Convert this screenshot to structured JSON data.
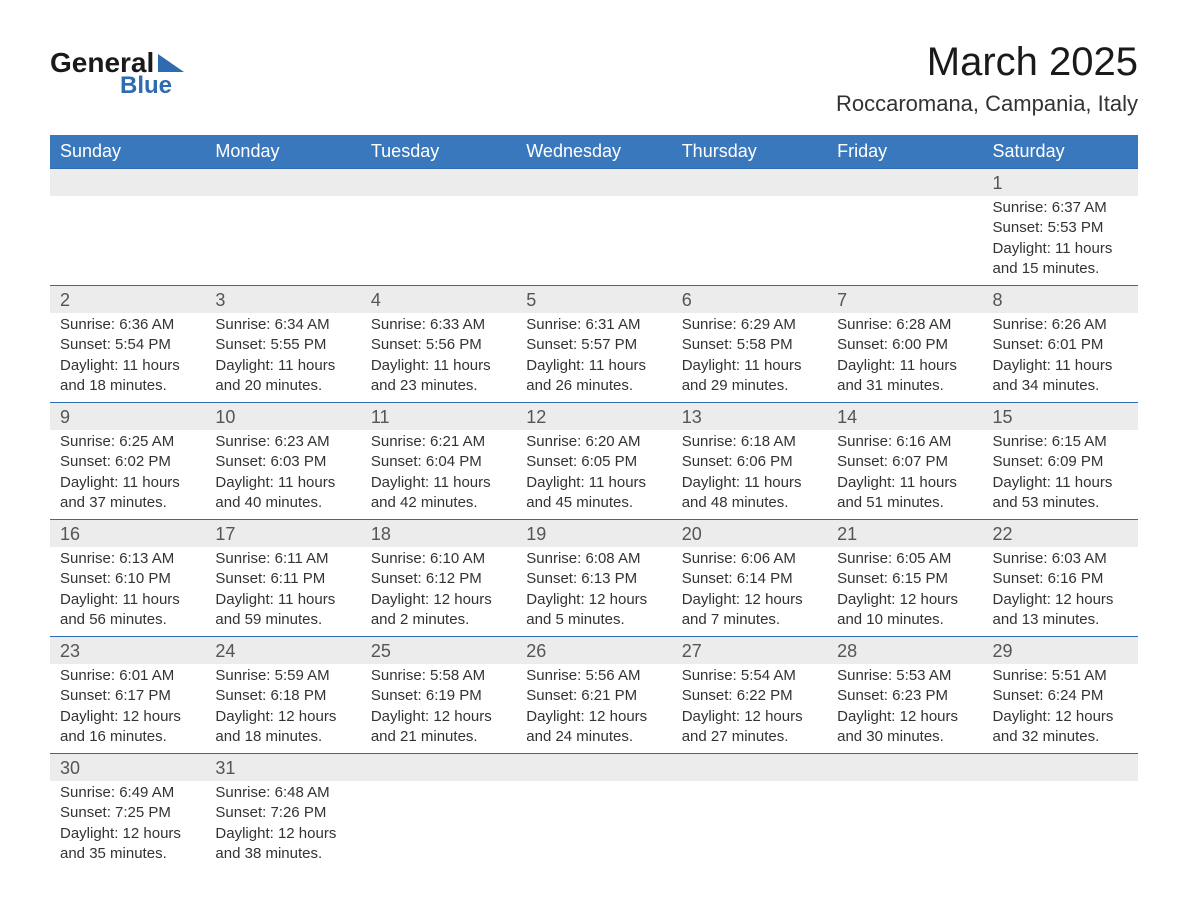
{
  "branding": {
    "logo_text1": "General",
    "logo_text2": "Blue",
    "logo_color_primary": "#1a1a1a",
    "logo_color_accent": "#2e6bb0"
  },
  "header": {
    "month_title": "March 2025",
    "location": "Roccaromana, Campania, Italy"
  },
  "style": {
    "header_row_bg": "#3a78bd",
    "header_row_text": "#ffffff",
    "daynum_bg": "#ececec",
    "row_separator": "#2e6bb0",
    "body_text": "#333333",
    "daynum_text": "#555555",
    "page_bg": "#ffffff",
    "th_fontsize": 18,
    "daynum_fontsize": 18,
    "data_fontsize": 15,
    "title_fontsize": 40,
    "location_fontsize": 22
  },
  "weekdays": [
    "Sunday",
    "Monday",
    "Tuesday",
    "Wednesday",
    "Thursday",
    "Friday",
    "Saturday"
  ],
  "weeks": [
    [
      null,
      null,
      null,
      null,
      null,
      null,
      {
        "n": "1",
        "sunrise": "Sunrise: 6:37 AM",
        "sunset": "Sunset: 5:53 PM",
        "daylight": "Daylight: 11 hours and 15 minutes."
      }
    ],
    [
      {
        "n": "2",
        "sunrise": "Sunrise: 6:36 AM",
        "sunset": "Sunset: 5:54 PM",
        "daylight": "Daylight: 11 hours and 18 minutes."
      },
      {
        "n": "3",
        "sunrise": "Sunrise: 6:34 AM",
        "sunset": "Sunset: 5:55 PM",
        "daylight": "Daylight: 11 hours and 20 minutes."
      },
      {
        "n": "4",
        "sunrise": "Sunrise: 6:33 AM",
        "sunset": "Sunset: 5:56 PM",
        "daylight": "Daylight: 11 hours and 23 minutes."
      },
      {
        "n": "5",
        "sunrise": "Sunrise: 6:31 AM",
        "sunset": "Sunset: 5:57 PM",
        "daylight": "Daylight: 11 hours and 26 minutes."
      },
      {
        "n": "6",
        "sunrise": "Sunrise: 6:29 AM",
        "sunset": "Sunset: 5:58 PM",
        "daylight": "Daylight: 11 hours and 29 minutes."
      },
      {
        "n": "7",
        "sunrise": "Sunrise: 6:28 AM",
        "sunset": "Sunset: 6:00 PM",
        "daylight": "Daylight: 11 hours and 31 minutes."
      },
      {
        "n": "8",
        "sunrise": "Sunrise: 6:26 AM",
        "sunset": "Sunset: 6:01 PM",
        "daylight": "Daylight: 11 hours and 34 minutes."
      }
    ],
    [
      {
        "n": "9",
        "sunrise": "Sunrise: 6:25 AM",
        "sunset": "Sunset: 6:02 PM",
        "daylight": "Daylight: 11 hours and 37 minutes."
      },
      {
        "n": "10",
        "sunrise": "Sunrise: 6:23 AM",
        "sunset": "Sunset: 6:03 PM",
        "daylight": "Daylight: 11 hours and 40 minutes."
      },
      {
        "n": "11",
        "sunrise": "Sunrise: 6:21 AM",
        "sunset": "Sunset: 6:04 PM",
        "daylight": "Daylight: 11 hours and 42 minutes."
      },
      {
        "n": "12",
        "sunrise": "Sunrise: 6:20 AM",
        "sunset": "Sunset: 6:05 PM",
        "daylight": "Daylight: 11 hours and 45 minutes."
      },
      {
        "n": "13",
        "sunrise": "Sunrise: 6:18 AM",
        "sunset": "Sunset: 6:06 PM",
        "daylight": "Daylight: 11 hours and 48 minutes."
      },
      {
        "n": "14",
        "sunrise": "Sunrise: 6:16 AM",
        "sunset": "Sunset: 6:07 PM",
        "daylight": "Daylight: 11 hours and 51 minutes."
      },
      {
        "n": "15",
        "sunrise": "Sunrise: 6:15 AM",
        "sunset": "Sunset: 6:09 PM",
        "daylight": "Daylight: 11 hours and 53 minutes."
      }
    ],
    [
      {
        "n": "16",
        "sunrise": "Sunrise: 6:13 AM",
        "sunset": "Sunset: 6:10 PM",
        "daylight": "Daylight: 11 hours and 56 minutes."
      },
      {
        "n": "17",
        "sunrise": "Sunrise: 6:11 AM",
        "sunset": "Sunset: 6:11 PM",
        "daylight": "Daylight: 11 hours and 59 minutes."
      },
      {
        "n": "18",
        "sunrise": "Sunrise: 6:10 AM",
        "sunset": "Sunset: 6:12 PM",
        "daylight": "Daylight: 12 hours and 2 minutes."
      },
      {
        "n": "19",
        "sunrise": "Sunrise: 6:08 AM",
        "sunset": "Sunset: 6:13 PM",
        "daylight": "Daylight: 12 hours and 5 minutes."
      },
      {
        "n": "20",
        "sunrise": "Sunrise: 6:06 AM",
        "sunset": "Sunset: 6:14 PM",
        "daylight": "Daylight: 12 hours and 7 minutes."
      },
      {
        "n": "21",
        "sunrise": "Sunrise: 6:05 AM",
        "sunset": "Sunset: 6:15 PM",
        "daylight": "Daylight: 12 hours and 10 minutes."
      },
      {
        "n": "22",
        "sunrise": "Sunrise: 6:03 AM",
        "sunset": "Sunset: 6:16 PM",
        "daylight": "Daylight: 12 hours and 13 minutes."
      }
    ],
    [
      {
        "n": "23",
        "sunrise": "Sunrise: 6:01 AM",
        "sunset": "Sunset: 6:17 PM",
        "daylight": "Daylight: 12 hours and 16 minutes."
      },
      {
        "n": "24",
        "sunrise": "Sunrise: 5:59 AM",
        "sunset": "Sunset: 6:18 PM",
        "daylight": "Daylight: 12 hours and 18 minutes."
      },
      {
        "n": "25",
        "sunrise": "Sunrise: 5:58 AM",
        "sunset": "Sunset: 6:19 PM",
        "daylight": "Daylight: 12 hours and 21 minutes."
      },
      {
        "n": "26",
        "sunrise": "Sunrise: 5:56 AM",
        "sunset": "Sunset: 6:21 PM",
        "daylight": "Daylight: 12 hours and 24 minutes."
      },
      {
        "n": "27",
        "sunrise": "Sunrise: 5:54 AM",
        "sunset": "Sunset: 6:22 PM",
        "daylight": "Daylight: 12 hours and 27 minutes."
      },
      {
        "n": "28",
        "sunrise": "Sunrise: 5:53 AM",
        "sunset": "Sunset: 6:23 PM",
        "daylight": "Daylight: 12 hours and 30 minutes."
      },
      {
        "n": "29",
        "sunrise": "Sunrise: 5:51 AM",
        "sunset": "Sunset: 6:24 PM",
        "daylight": "Daylight: 12 hours and 32 minutes."
      }
    ],
    [
      {
        "n": "30",
        "sunrise": "Sunrise: 6:49 AM",
        "sunset": "Sunset: 7:25 PM",
        "daylight": "Daylight: 12 hours and 35 minutes."
      },
      {
        "n": "31",
        "sunrise": "Sunrise: 6:48 AM",
        "sunset": "Sunset: 7:26 PM",
        "daylight": "Daylight: 12 hours and 38 minutes."
      },
      null,
      null,
      null,
      null,
      null
    ]
  ]
}
